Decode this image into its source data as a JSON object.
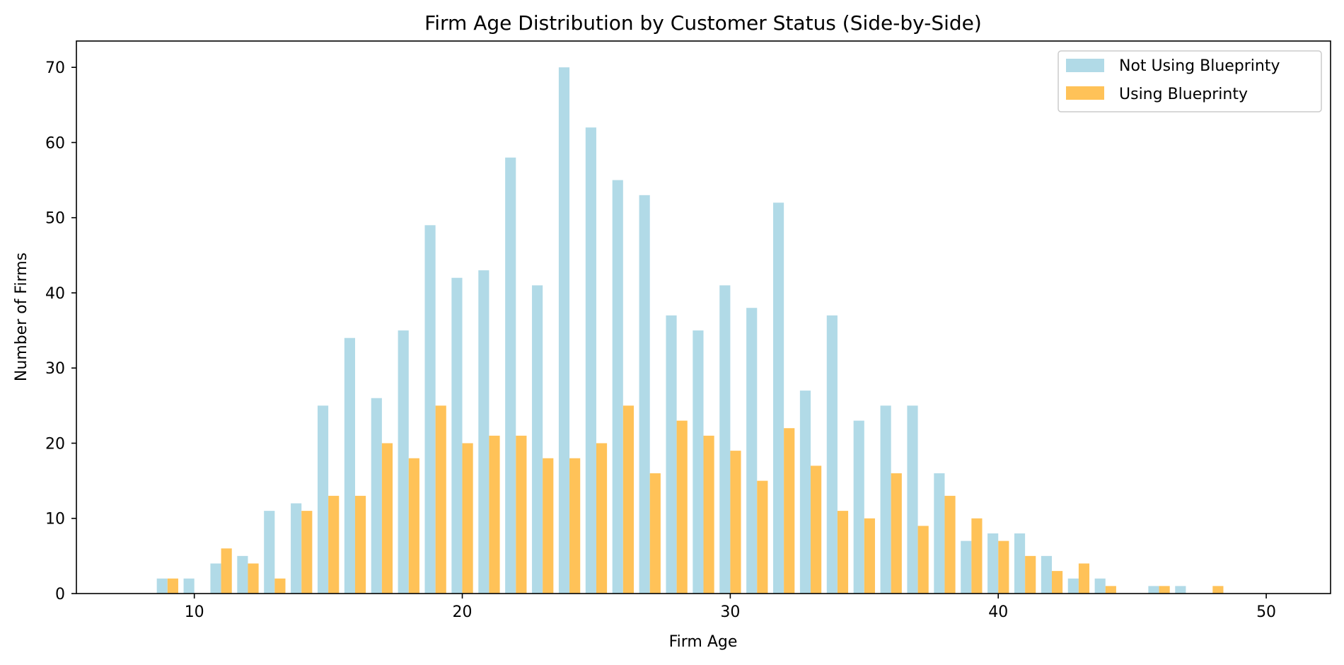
{
  "chart_data": {
    "type": "bar",
    "title": "Firm Age Distribution by Customer Status (Side-by-Side)",
    "xlabel": "Firm Age",
    "ylabel": "Number of Firms",
    "xlim": [
      5.6,
      52.4
    ],
    "ylim": [
      0,
      73.5
    ],
    "xticks": [
      10,
      20,
      30,
      40,
      50
    ],
    "yticks": [
      0,
      10,
      20,
      30,
      40,
      50,
      60,
      70
    ],
    "bin_width": 0.8,
    "legend_position": "top-right",
    "x": [
      9,
      10,
      11,
      12,
      13,
      14,
      15,
      16,
      17,
      18,
      19,
      20,
      21,
      22,
      23,
      24,
      25,
      26,
      27,
      28,
      29,
      30,
      31,
      32,
      33,
      34,
      35,
      36,
      37,
      38,
      39,
      40,
      41,
      42,
      43,
      44,
      45,
      46,
      47,
      48,
      49,
      50
    ],
    "series": [
      {
        "name": "Not Using Blueprinty",
        "color": "#add8e6",
        "values": [
          2,
          2,
          4,
          5,
          11,
          12,
          25,
          34,
          26,
          35,
          49,
          42,
          43,
          58,
          41,
          70,
          62,
          55,
          53,
          37,
          35,
          41,
          38,
          52,
          27,
          37,
          23,
          25,
          25,
          16,
          7,
          8,
          8,
          5,
          2,
          2,
          0,
          1,
          1,
          0,
          0,
          0
        ]
      },
      {
        "name": "Using Blueprinty",
        "color": "#ffbf4f",
        "values": [
          2,
          0,
          6,
          4,
          2,
          11,
          13,
          13,
          20,
          18,
          25,
          20,
          21,
          21,
          18,
          18,
          20,
          25,
          16,
          23,
          21,
          19,
          15,
          22,
          17,
          11,
          10,
          16,
          9,
          13,
          10,
          7,
          5,
          3,
          4,
          1,
          0,
          1,
          0,
          1,
          0,
          0
        ]
      }
    ]
  }
}
